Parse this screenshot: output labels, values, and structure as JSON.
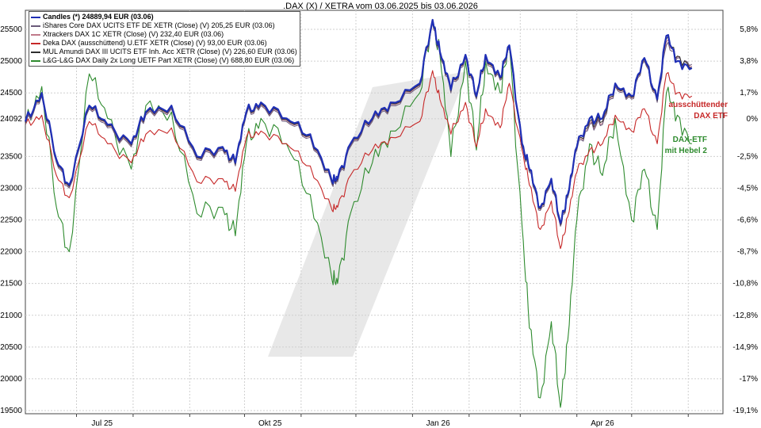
{
  "chart_data": {
    "type": "line",
    "title": ".DAX (X) / XETRA vom 03.06.2025 bis 03.06.2026",
    "x_ticks": [
      "Jul 25",
      "Okt 25",
      "Jan 26",
      "Apr 26"
    ],
    "y_left_ticks": [
      "25500",
      "25000",
      "24500",
      "24092",
      "23500",
      "23000",
      "22500",
      "22000",
      "21500",
      "21000",
      "20500",
      "20000",
      "19500"
    ],
    "y_right_ticks": [
      "5,8%",
      "3,8%",
      "1,7%",
      "0%",
      "-2,5%",
      "-4,5%",
      "-6,6%",
      "-8,7%",
      "-10,8%",
      "-12,8%",
      "-14,9%",
      "-17%",
      "-19,1%"
    ],
    "ylim": [
      19450,
      25800
    ],
    "grid": true,
    "legend_position": "top-left",
    "legend": [
      {
        "label": "Candles (*) 24889,94 EUR (03.06)",
        "color": "#1f2fb5"
      },
      {
        "label": "iShares Core DAX UCITS ETF DE XETR (Close) (V) 205,25 EUR (03.06)",
        "color": "#6b5a7a"
      },
      {
        "label": "Xtrackers DAX 1C XETR (Close) (V) 232,40 EUR (03.06)",
        "color": "#c07a8a"
      },
      {
        "label": "Deka DAX (ausschüttend) U.ETF XETR (Close) (V) 93,00 EUR (03.06)",
        "color": "#c62828"
      },
      {
        "label": "MUL Amundi DAX III UCITS ETF Inh. Acc XETR (Close) (V) 226,60 EUR (03.06)",
        "color": "#2e2e2e"
      },
      {
        "label": "L&G-L&G DAX Daily 2x Long UETF Part XETR (Close) (V) 688,80 EUR (03.06)",
        "color": "#2e8b2e"
      }
    ],
    "annotations": [
      {
        "text": [
          "ausschüttender",
          "DAX ETF"
        ],
        "color": "#c62828"
      },
      {
        "text": [
          "DAX-ETF",
          "mit Hebel 2"
        ],
        "color": "#2e8b2e"
      }
    ],
    "series": [
      {
        "name": "Candles",
        "key": "dax",
        "color": "#1f2fb5",
        "x": [
          "2025-06-03",
          "2025-06-12",
          "2025-06-20",
          "2025-06-27",
          "2025-07-08",
          "2025-07-18",
          "2025-07-31",
          "2025-08-08",
          "2025-08-22",
          "2025-09-05",
          "2025-09-19",
          "2025-09-26",
          "2025-10-02",
          "2025-10-10",
          "2025-10-24",
          "2025-11-06",
          "2025-11-18",
          "2025-11-21",
          "2025-11-28",
          "2025-12-10",
          "2025-12-20",
          "2026-01-05",
          "2026-01-12",
          "2026-01-16",
          "2026-01-22",
          "2026-01-30",
          "2026-02-05",
          "2026-02-10",
          "2026-02-18",
          "2026-02-23",
          "2026-03-02",
          "2026-03-06",
          "2026-03-12",
          "2026-03-18",
          "2026-03-23",
          "2026-03-27",
          "2026-04-01",
          "2026-04-08",
          "2026-04-15",
          "2026-04-22",
          "2026-05-01",
          "2026-05-08",
          "2026-05-15",
          "2026-05-20",
          "2026-05-26",
          "2026-06-03"
        ],
        "y": [
          24050,
          24500,
          23450,
          23050,
          24300,
          24000,
          23700,
          24200,
          24300,
          23500,
          23650,
          23400,
          24200,
          24350,
          24100,
          23850,
          23100,
          23150,
          23700,
          24100,
          24350,
          24650,
          25650,
          25150,
          24550,
          25100,
          24450,
          25100,
          24750,
          25250,
          23700,
          23300,
          22700,
          23150,
          22450,
          22900,
          23650,
          24100,
          24100,
          24650,
          24450,
          25050,
          24400,
          25400,
          25000,
          24890
        ]
      },
      {
        "name": "iShares Core DAX",
        "key": "ishares",
        "color": "#6b5a7a",
        "x": [
          "2025-06-03",
          "2025-06-12",
          "2025-06-20",
          "2025-06-27",
          "2025-07-08",
          "2025-07-18",
          "2025-07-31",
          "2025-08-08",
          "2025-08-22",
          "2025-09-05",
          "2025-09-19",
          "2025-09-26",
          "2025-10-02",
          "2025-10-10",
          "2025-10-24",
          "2025-11-06",
          "2025-11-18",
          "2025-11-21",
          "2025-11-28",
          "2025-12-10",
          "2025-12-20",
          "2026-01-05",
          "2026-01-12",
          "2026-01-16",
          "2026-01-22",
          "2026-01-30",
          "2026-02-05",
          "2026-02-10",
          "2026-02-18",
          "2026-02-23",
          "2026-03-02",
          "2026-03-06",
          "2026-03-12",
          "2026-03-18",
          "2026-03-23",
          "2026-03-27",
          "2026-04-01",
          "2026-04-08",
          "2026-04-15",
          "2026-04-22",
          "2026-05-01",
          "2026-05-08",
          "2026-05-15",
          "2026-05-20",
          "2026-05-26",
          "2026-06-03"
        ],
        "y": [
          24000,
          24450,
          23400,
          23000,
          24250,
          23950,
          23650,
          24150,
          24250,
          23450,
          23600,
          23350,
          24150,
          24300,
          24050,
          23800,
          23050,
          23100,
          23650,
          24050,
          24300,
          24600,
          25600,
          25100,
          24500,
          25050,
          24400,
          25050,
          24700,
          25200,
          23650,
          23250,
          22650,
          23100,
          22400,
          22850,
          23600,
          24000,
          24000,
          24600,
          24400,
          25000,
          24350,
          25250,
          25050,
          24950
        ]
      },
      {
        "name": "Xtrackers DAX 1C",
        "key": "xtrackers",
        "color": "#c07a8a",
        "x": [
          "2025-06-03",
          "2025-06-12",
          "2025-06-20",
          "2025-06-27",
          "2025-07-08",
          "2025-07-18",
          "2025-07-31",
          "2025-08-08",
          "2025-08-22",
          "2025-09-05",
          "2025-09-19",
          "2025-09-26",
          "2025-10-02",
          "2025-10-10",
          "2025-10-24",
          "2025-11-06",
          "2025-11-18",
          "2025-11-21",
          "2025-11-28",
          "2025-12-10",
          "2025-12-20",
          "2026-01-05",
          "2026-01-12",
          "2026-01-16",
          "2026-01-22",
          "2026-01-30",
          "2026-02-05",
          "2026-02-10",
          "2026-02-18",
          "2026-02-23",
          "2026-03-02",
          "2026-03-06",
          "2026-03-12",
          "2026-03-18",
          "2026-03-23",
          "2026-03-27",
          "2026-04-01",
          "2026-04-08",
          "2026-04-15",
          "2026-04-22",
          "2026-05-01",
          "2026-05-08",
          "2026-05-15",
          "2026-05-20",
          "2026-05-26",
          "2026-06-03"
        ],
        "y": [
          24020,
          24470,
          23420,
          23020,
          24270,
          23970,
          23670,
          24170,
          24270,
          23470,
          23620,
          23370,
          24170,
          24320,
          24070,
          23820,
          23070,
          23120,
          23670,
          24070,
          24320,
          24620,
          25620,
          25120,
          24520,
          25070,
          24420,
          25070,
          24720,
          25220,
          23670,
          23270,
          22670,
          23120,
          22420,
          22870,
          23620,
          24020,
          24020,
          24620,
          24420,
          25020,
          24370,
          25300,
          25070,
          24920
        ]
      },
      {
        "name": "Deka DAX (ausschüttend)",
        "key": "deka",
        "color": "#c62828",
        "x": [
          "2025-06-03",
          "2025-06-12",
          "2025-06-20",
          "2025-06-27",
          "2025-07-08",
          "2025-07-18",
          "2025-07-31",
          "2025-08-08",
          "2025-08-22",
          "2025-09-05",
          "2025-09-19",
          "2025-09-26",
          "2025-10-02",
          "2025-10-10",
          "2025-10-24",
          "2025-11-06",
          "2025-11-18",
          "2025-11-21",
          "2025-11-28",
          "2025-12-10",
          "2025-12-20",
          "2026-01-05",
          "2026-01-12",
          "2026-01-16",
          "2026-01-22",
          "2026-01-30",
          "2026-02-05",
          "2026-02-10",
          "2026-02-18",
          "2026-02-23",
          "2026-03-02",
          "2026-03-06",
          "2026-03-12",
          "2026-03-18",
          "2026-03-23",
          "2026-03-27",
          "2026-04-01",
          "2026-04-08",
          "2026-04-15",
          "2026-04-22",
          "2026-05-01",
          "2026-05-08",
          "2026-05-15",
          "2026-05-20",
          "2026-05-26",
          "2026-06-03"
        ],
        "y": [
          24000,
          24150,
          23200,
          22850,
          24050,
          23700,
          23400,
          23850,
          23950,
          23100,
          23150,
          22950,
          23800,
          23900,
          23700,
          23350,
          22650,
          22700,
          23200,
          23600,
          23800,
          24050,
          24850,
          24400,
          23850,
          24350,
          23650,
          24250,
          23950,
          24650,
          23600,
          23050,
          22350,
          22800,
          22050,
          22550,
          23250,
          23600,
          23700,
          24150,
          23900,
          24250,
          23700,
          24800,
          24500,
          24450
        ]
      },
      {
        "name": "MUL Amundi DAX III",
        "key": "amundi",
        "color": "#2e2e2e",
        "x": [
          "2025-06-03",
          "2025-06-12",
          "2025-06-20",
          "2025-06-27",
          "2025-07-08",
          "2025-07-18",
          "2025-07-31",
          "2025-08-08",
          "2025-08-22",
          "2025-09-05",
          "2025-09-19",
          "2025-09-26",
          "2025-10-02",
          "2025-10-10",
          "2025-10-24",
          "2025-11-06",
          "2025-11-18",
          "2025-11-21",
          "2025-11-28",
          "2025-12-10",
          "2025-12-20",
          "2026-01-05",
          "2026-01-12",
          "2026-01-16",
          "2026-01-22",
          "2026-01-30",
          "2026-02-05",
          "2026-02-10",
          "2026-02-18",
          "2026-02-23",
          "2026-03-02",
          "2026-03-06",
          "2026-03-12",
          "2026-03-18",
          "2026-03-23",
          "2026-03-27",
          "2026-04-01",
          "2026-04-08",
          "2026-04-15",
          "2026-04-22",
          "2026-05-01",
          "2026-05-08",
          "2026-05-15",
          "2026-05-20",
          "2026-05-26",
          "2026-06-03"
        ],
        "y": [
          24030,
          24480,
          23430,
          23030,
          24280,
          23980,
          23680,
          24180,
          24280,
          23480,
          23630,
          23380,
          24180,
          24330,
          24080,
          23830,
          23080,
          23130,
          23680,
          24080,
          24330,
          24630,
          25630,
          25130,
          24530,
          25080,
          24430,
          25080,
          24730,
          25230,
          23680,
          23280,
          22680,
          23130,
          22430,
          22880,
          23630,
          24050,
          24050,
          24630,
          24430,
          25030,
          24380,
          25350,
          25080,
          24900
        ]
      },
      {
        "name": "L&G DAX Daily 2x Long",
        "key": "lg2x",
        "color": "#2e8b2e",
        "x": [
          "2025-06-03",
          "2025-06-12",
          "2025-06-20",
          "2025-06-27",
          "2025-07-08",
          "2025-07-18",
          "2025-07-31",
          "2025-08-08",
          "2025-08-22",
          "2025-09-05",
          "2025-09-19",
          "2025-09-26",
          "2025-10-02",
          "2025-10-10",
          "2025-10-24",
          "2025-11-06",
          "2025-11-18",
          "2025-11-21",
          "2025-11-28",
          "2025-12-10",
          "2025-12-20",
          "2026-01-05",
          "2026-01-12",
          "2026-01-16",
          "2026-01-22",
          "2026-01-30",
          "2026-02-05",
          "2026-02-10",
          "2026-02-18",
          "2026-02-23",
          "2026-03-02",
          "2026-03-06",
          "2026-03-12",
          "2026-03-18",
          "2026-03-23",
          "2026-03-27",
          "2026-04-01",
          "2026-04-08",
          "2026-04-15",
          "2026-04-22",
          "2026-05-01",
          "2026-05-08",
          "2026-05-15",
          "2026-05-20",
          "2026-05-26",
          "2026-06-03"
        ],
        "y": [
          24000,
          24600,
          22700,
          22000,
          24800,
          24100,
          23300,
          24300,
          24200,
          22600,
          22700,
          22250,
          23700,
          24100,
          23700,
          22900,
          21550,
          21500,
          22600,
          23400,
          23900,
          24500,
          25650,
          25100,
          23500,
          25000,
          23600,
          25000,
          24500,
          25250,
          22400,
          20800,
          19700,
          20900,
          19550,
          20600,
          22500,
          23700,
          23200,
          24100,
          22500,
          23300,
          22350,
          24500,
          24150,
          23700
        ]
      }
    ]
  }
}
